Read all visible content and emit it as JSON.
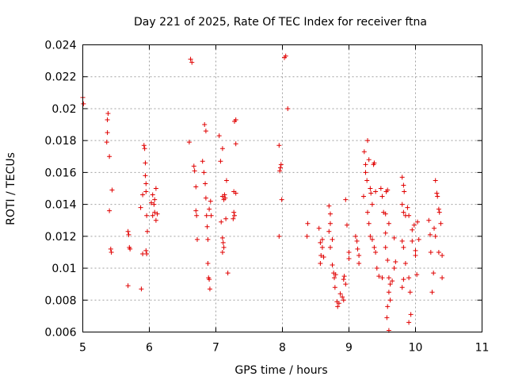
{
  "chart_data": {
    "type": "scatter",
    "title": "Day 221 of 2025, Rate Of TEC Index for receiver ftna",
    "xlabel": "GPS time / hours",
    "ylabel": "ROTI / TECUs",
    "xlim": [
      5,
      11
    ],
    "ylim": [
      0.006,
      0.024
    ],
    "grid": true,
    "marker": "plus",
    "color": "#e00000",
    "xticks": [
      "5",
      "6",
      "7",
      "8",
      "9",
      "10",
      "11"
    ],
    "yticks": [
      "0.006",
      "0.008",
      "0.01",
      "0.012",
      "0.014",
      "0.016",
      "0.018",
      "0.02",
      "0.022",
      "0.024"
    ],
    "points": [
      [
        5.0,
        0.0207
      ],
      [
        5.01,
        0.0203
      ],
      [
        5.37,
        0.0193
      ],
      [
        5.38,
        0.0197
      ],
      [
        5.37,
        0.0185
      ],
      [
        5.36,
        0.0179
      ],
      [
        5.4,
        0.017
      ],
      [
        5.44,
        0.0149
      ],
      [
        5.4,
        0.0136
      ],
      [
        5.42,
        0.0112
      ],
      [
        5.43,
        0.011
      ],
      [
        5.68,
        0.0123
      ],
      [
        5.69,
        0.0121
      ],
      [
        5.7,
        0.0113
      ],
      [
        5.71,
        0.0112
      ],
      [
        5.68,
        0.0089
      ],
      [
        5.88,
        0.0087
      ],
      [
        5.9,
        0.0109
      ],
      [
        5.87,
        0.0138
      ],
      [
        5.9,
        0.0146
      ],
      [
        5.92,
        0.0177
      ],
      [
        5.93,
        0.0175
      ],
      [
        5.94,
        0.0166
      ],
      [
        5.94,
        0.0158
      ],
      [
        5.95,
        0.0153
      ],
      [
        5.95,
        0.0148
      ],
      [
        5.96,
        0.0133
      ],
      [
        5.97,
        0.0123
      ],
      [
        5.95,
        0.0111
      ],
      [
        5.96,
        0.0109
      ],
      [
        6.03,
        0.0141
      ],
      [
        6.05,
        0.0146
      ],
      [
        6.07,
        0.014
      ],
      [
        6.08,
        0.0135
      ],
      [
        6.1,
        0.015
      ],
      [
        6.12,
        0.0134
      ],
      [
        6.1,
        0.013
      ],
      [
        6.05,
        0.0133
      ],
      [
        6.08,
        0.0143
      ],
      [
        6.6,
        0.0179
      ],
      [
        6.62,
        0.0231
      ],
      [
        6.64,
        0.0229
      ],
      [
        6.67,
        0.0164
      ],
      [
        6.68,
        0.0161
      ],
      [
        6.7,
        0.0151
      ],
      [
        6.7,
        0.0136
      ],
      [
        6.71,
        0.0133
      ],
      [
        6.72,
        0.0118
      ],
      [
        6.8,
        0.0167
      ],
      [
        6.82,
        0.016
      ],
      [
        6.83,
        0.019
      ],
      [
        6.85,
        0.0186
      ],
      [
        6.84,
        0.0153
      ],
      [
        6.85,
        0.0144
      ],
      [
        6.86,
        0.0133
      ],
      [
        6.87,
        0.0126
      ],
      [
        6.88,
        0.0118
      ],
      [
        6.88,
        0.0103
      ],
      [
        6.89,
        0.0094
      ],
      [
        6.9,
        0.0093
      ],
      [
        6.91,
        0.0087
      ],
      [
        6.9,
        0.0137
      ],
      [
        6.92,
        0.0142
      ],
      [
        6.93,
        0.0133
      ],
      [
        7.05,
        0.0183
      ],
      [
        7.07,
        0.0167
      ],
      [
        7.1,
        0.0175
      ],
      [
        7.1,
        0.0145
      ],
      [
        7.12,
        0.0143
      ],
      [
        7.13,
        0.0146
      ],
      [
        7.15,
        0.0131
      ],
      [
        7.16,
        0.0155
      ],
      [
        7.08,
        0.0129
      ],
      [
        7.1,
        0.0119
      ],
      [
        7.11,
        0.0116
      ],
      [
        7.12,
        0.0113
      ],
      [
        7.1,
        0.011
      ],
      [
        7.14,
        0.0144
      ],
      [
        7.18,
        0.0097
      ],
      [
        7.28,
        0.0192
      ],
      [
        7.3,
        0.0193
      ],
      [
        7.3,
        0.0178
      ],
      [
        7.27,
        0.0148
      ],
      [
        7.3,
        0.0147
      ],
      [
        7.27,
        0.0135
      ],
      [
        7.28,
        0.0133
      ],
      [
        7.26,
        0.0131
      ],
      [
        7.95,
        0.0177
      ],
      [
        7.96,
        0.0161
      ],
      [
        7.97,
        0.0163
      ],
      [
        7.98,
        0.0165
      ],
      [
        7.99,
        0.0143
      ],
      [
        7.95,
        0.012
      ],
      [
        8.03,
        0.0232
      ],
      [
        8.05,
        0.0233
      ],
      [
        8.08,
        0.02
      ],
      [
        8.38,
        0.0128
      ],
      [
        8.37,
        0.012
      ],
      [
        8.55,
        0.0125
      ],
      [
        8.57,
        0.0116
      ],
      [
        8.6,
        0.0118
      ],
      [
        8.6,
        0.0113
      ],
      [
        8.58,
        0.0108
      ],
      [
        8.57,
        0.0103
      ],
      [
        8.62,
        0.0107
      ],
      [
        8.7,
        0.0139
      ],
      [
        8.72,
        0.0134
      ],
      [
        8.72,
        0.0128
      ],
      [
        8.7,
        0.0123
      ],
      [
        8.75,
        0.0118
      ],
      [
        8.72,
        0.0113
      ],
      [
        8.75,
        0.0102
      ],
      [
        8.77,
        0.0097
      ],
      [
        8.78,
        0.0094
      ],
      [
        8.8,
        0.0096
      ],
      [
        8.79,
        0.0088
      ],
      [
        8.82,
        0.0079
      ],
      [
        8.83,
        0.0076
      ],
      [
        8.85,
        0.0078
      ],
      [
        8.87,
        0.0084
      ],
      [
        8.9,
        0.0082
      ],
      [
        8.92,
        0.008
      ],
      [
        8.93,
        0.0095
      ],
      [
        8.92,
        0.0093
      ],
      [
        8.95,
        0.009
      ],
      [
        8.95,
        0.0143
      ],
      [
        8.97,
        0.0127
      ],
      [
        9.0,
        0.011
      ],
      [
        9.0,
        0.0106
      ],
      [
        9.1,
        0.012
      ],
      [
        9.12,
        0.0117
      ],
      [
        9.13,
        0.0112
      ],
      [
        9.15,
        0.0108
      ],
      [
        9.15,
        0.0103
      ],
      [
        9.22,
        0.0145
      ],
      [
        9.23,
        0.0173
      ],
      [
        9.25,
        0.0165
      ],
      [
        9.25,
        0.016
      ],
      [
        9.27,
        0.0155
      ],
      [
        9.28,
        0.018
      ],
      [
        9.3,
        0.0168
      ],
      [
        9.32,
        0.015
      ],
      [
        9.33,
        0.0147
      ],
      [
        9.35,
        0.014
      ],
      [
        9.28,
        0.0135
      ],
      [
        9.3,
        0.0128
      ],
      [
        9.32,
        0.012
      ],
      [
        9.35,
        0.0118
      ],
      [
        9.37,
        0.0165
      ],
      [
        9.38,
        0.0166
      ],
      [
        9.4,
        0.0148
      ],
      [
        9.38,
        0.0113
      ],
      [
        9.4,
        0.011
      ],
      [
        9.42,
        0.01
      ],
      [
        9.45,
        0.0095
      ],
      [
        9.5,
        0.0094
      ],
      [
        9.48,
        0.015
      ],
      [
        9.5,
        0.0145
      ],
      [
        9.52,
        0.0135
      ],
      [
        9.55,
        0.0134
      ],
      [
        9.55,
        0.0122
      ],
      [
        9.56,
        0.0148
      ],
      [
        9.58,
        0.0149
      ],
      [
        9.6,
        0.0128
      ],
      [
        9.55,
        0.0113
      ],
      [
        9.58,
        0.0105
      ],
      [
        9.6,
        0.0094
      ],
      [
        9.6,
        0.0085
      ],
      [
        9.62,
        0.008
      ],
      [
        9.58,
        0.0076
      ],
      [
        9.57,
        0.0069
      ],
      [
        9.6,
        0.0061
      ],
      [
        9.62,
        0.009
      ],
      [
        9.65,
        0.0092
      ],
      [
        9.68,
        0.01
      ],
      [
        9.68,
        0.0119
      ],
      [
        9.7,
        0.0104
      ],
      [
        9.8,
        0.0157
      ],
      [
        9.82,
        0.0152
      ],
      [
        9.83,
        0.0148
      ],
      [
        9.8,
        0.014
      ],
      [
        9.82,
        0.0135
      ],
      [
        9.85,
        0.0133
      ],
      [
        9.8,
        0.0117
      ],
      [
        9.82,
        0.0113
      ],
      [
        9.85,
        0.0103
      ],
      [
        9.82,
        0.0093
      ],
      [
        9.8,
        0.0088
      ],
      [
        9.88,
        0.0138
      ],
      [
        9.9,
        0.0133
      ],
      [
        9.9,
        0.0094
      ],
      [
        9.92,
        0.0085
      ],
      [
        9.93,
        0.0071
      ],
      [
        9.9,
        0.0066
      ],
      [
        9.95,
        0.0117
      ],
      [
        9.95,
        0.0124
      ],
      [
        9.98,
        0.0127
      ],
      [
        10.0,
        0.0111
      ],
      [
        10.0,
        0.0108
      ],
      [
        10.02,
        0.0096
      ],
      [
        10.03,
        0.0129
      ],
      [
        10.05,
        0.0118
      ],
      [
        10.2,
        0.013
      ],
      [
        10.22,
        0.0121
      ],
      [
        10.23,
        0.011
      ],
      [
        10.25,
        0.0085
      ],
      [
        10.27,
        0.0097
      ],
      [
        10.28,
        0.0125
      ],
      [
        10.3,
        0.012
      ],
      [
        10.3,
        0.0155
      ],
      [
        10.32,
        0.0147
      ],
      [
        10.33,
        0.0145
      ],
      [
        10.35,
        0.0137
      ],
      [
        10.36,
        0.0135
      ],
      [
        10.38,
        0.0128
      ],
      [
        10.35,
        0.011
      ],
      [
        10.4,
        0.0108
      ],
      [
        10.4,
        0.0094
      ]
    ]
  }
}
